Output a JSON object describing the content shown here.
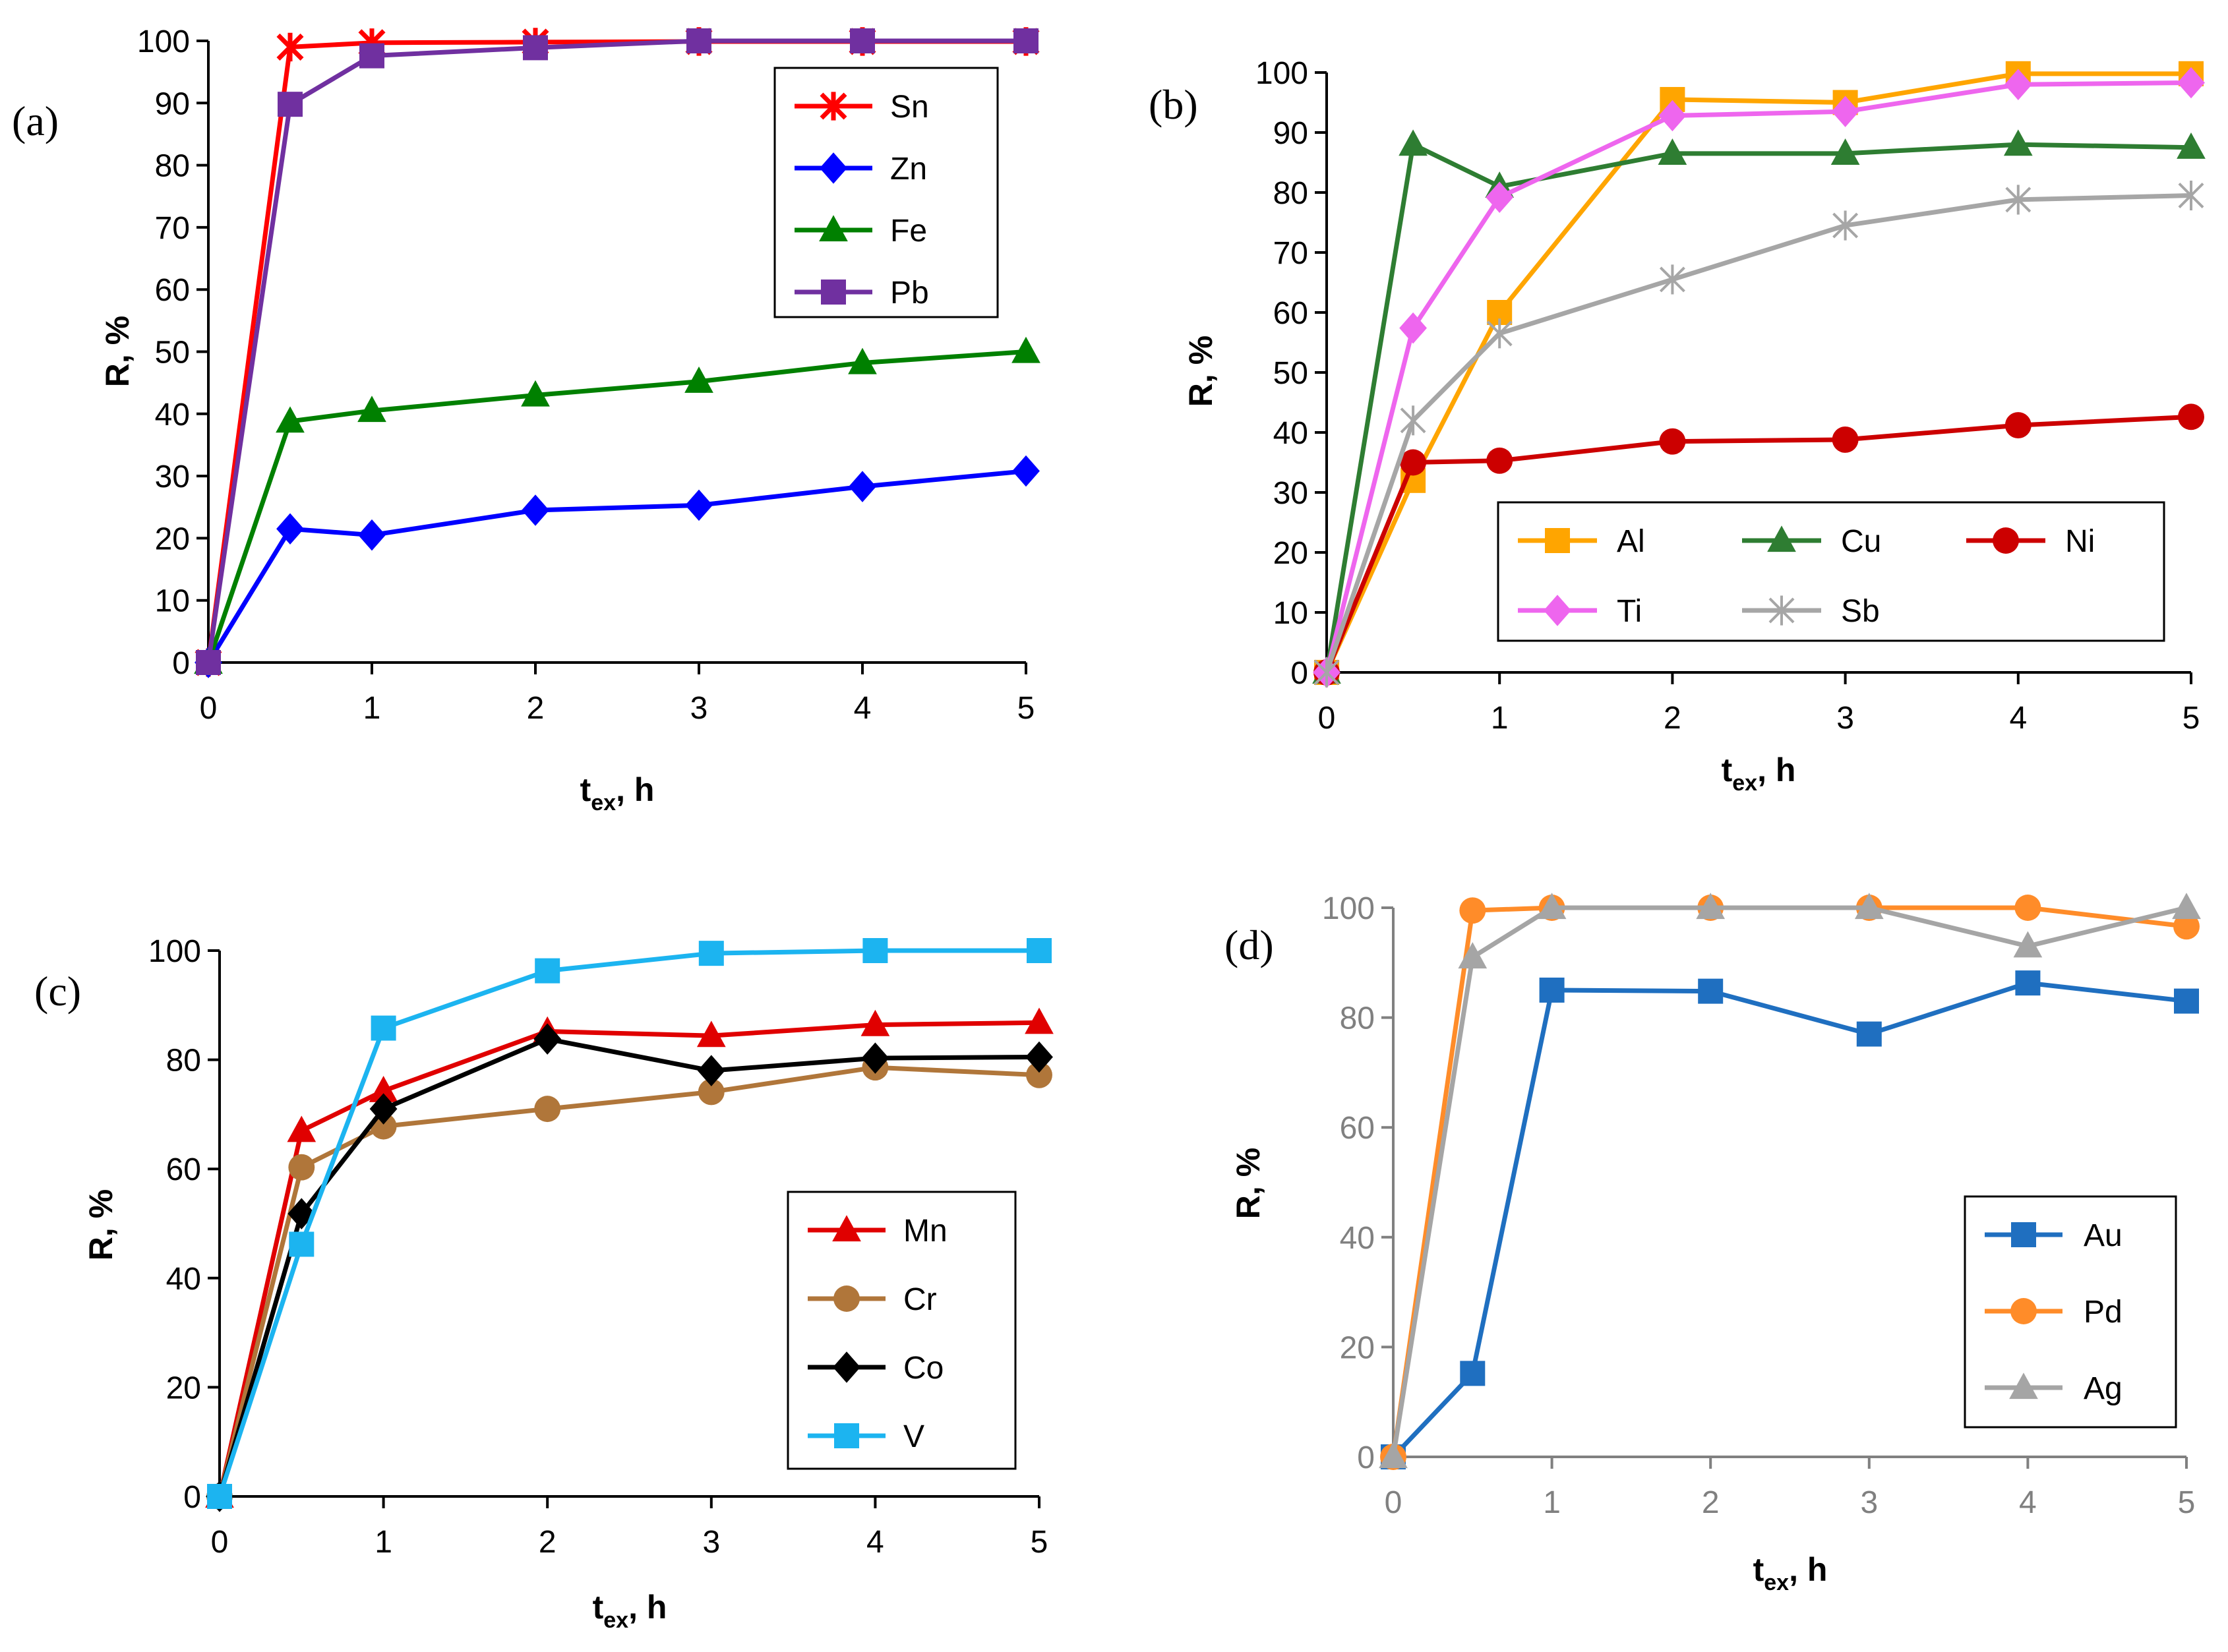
{
  "chart_data": [
    {
      "panel": "(a)",
      "type": "line",
      "title": "",
      "xlabel": "t",
      "xlabel_sub": "ex",
      "xlabel_suffix": ", h",
      "ylabel": "R, %",
      "xlim": [
        0,
        5
      ],
      "ylim": [
        0,
        100
      ],
      "xticks": [
        0,
        1,
        2,
        3,
        4,
        5
      ],
      "yticks": [
        0,
        10,
        20,
        30,
        40,
        50,
        60,
        70,
        80,
        90,
        100
      ],
      "axis_color": "#000000",
      "legend_position": "top-right",
      "x": [
        0,
        0.5,
        1,
        2,
        3,
        4,
        5
      ],
      "series": [
        {
          "name": "Sn",
          "color": "#ff0000",
          "marker": "star",
          "values": [
            0,
            99,
            99.7,
            99.8,
            99.9,
            99.9,
            99.9
          ]
        },
        {
          "name": "Zn",
          "color": "#0000ff",
          "marker": "diamond",
          "values": [
            0,
            21.5,
            20.5,
            24.5,
            25.3,
            28.3,
            30.8
          ]
        },
        {
          "name": "Fe",
          "color": "#008000",
          "marker": "triangle",
          "values": [
            0,
            38.8,
            40.5,
            43,
            45.2,
            48.2,
            50
          ]
        },
        {
          "name": "Pb",
          "color": "#7030a0",
          "marker": "square",
          "values": [
            0,
            89.8,
            97.6,
            98.9,
            100,
            100,
            100
          ]
        }
      ]
    },
    {
      "panel": "(b)",
      "type": "line",
      "title": "",
      "xlabel": "t",
      "xlabel_sub": "ex",
      "xlabel_suffix": ", h",
      "ylabel": "R, %",
      "xlim": [
        0,
        5
      ],
      "ylim": [
        0,
        100
      ],
      "xticks": [
        0,
        1,
        2,
        3,
        4,
        5
      ],
      "yticks": [
        0,
        10,
        20,
        30,
        40,
        50,
        60,
        70,
        80,
        90,
        100
      ],
      "axis_color": "#000000",
      "legend_position": "bottom-right",
      "x": [
        0,
        0.5,
        1,
        2,
        3,
        4,
        5
      ],
      "series": [
        {
          "name": "Al",
          "color": "#ffa500",
          "marker": "square",
          "values": [
            0,
            32,
            60,
            95.5,
            95,
            99.8,
            99.8
          ]
        },
        {
          "name": "Cu",
          "color": "#2e7d32",
          "marker": "triangle",
          "values": [
            0,
            88,
            81,
            86.5,
            86.5,
            88,
            87.5
          ]
        },
        {
          "name": "Ni",
          "color": "#cc0000",
          "marker": "circle",
          "values": [
            0,
            35,
            35.3,
            38.5,
            38.8,
            41.2,
            42.6
          ]
        },
        {
          "name": "Ti",
          "color": "#ee66ee",
          "marker": "diamond",
          "values": [
            0,
            57.4,
            79.2,
            92.8,
            93.5,
            98,
            98.3
          ]
        },
        {
          "name": "Sb",
          "color": "#a6a6a6",
          "marker": "asterisk",
          "values": [
            0,
            42,
            56.5,
            65.5,
            74.5,
            78.8,
            79.5
          ]
        }
      ]
    },
    {
      "panel": "(c)",
      "type": "line",
      "title": "",
      "xlabel": "t",
      "xlabel_sub": "ex",
      "xlabel_suffix": ", h",
      "ylabel": "R, %",
      "xlim": [
        0,
        5
      ],
      "ylim": [
        0,
        100
      ],
      "xticks": [
        0,
        1,
        2,
        3,
        4,
        5
      ],
      "yticks": [
        0,
        20,
        40,
        60,
        80,
        100
      ],
      "axis_color": "#000000",
      "legend_position": "bottom-right",
      "x": [
        0,
        0.5,
        1,
        2,
        3,
        4,
        5
      ],
      "series": [
        {
          "name": "Mn",
          "color": "#e00000",
          "marker": "triangle",
          "values": [
            0,
            67,
            74.3,
            85.2,
            84.4,
            86.4,
            86.8
          ]
        },
        {
          "name": "Cr",
          "color": "#b0763a",
          "marker": "circle",
          "values": [
            0,
            60.3,
            67.8,
            71,
            74.1,
            78.6,
            77.2
          ]
        },
        {
          "name": "Co",
          "color": "#000000",
          "marker": "diamond",
          "values": [
            0,
            51.8,
            71,
            83.8,
            78,
            80.3,
            80.5
          ]
        },
        {
          "name": "V",
          "color": "#1cb4f0",
          "marker": "square",
          "values": [
            0,
            46.2,
            85.8,
            96.3,
            99.5,
            100,
            100
          ]
        }
      ]
    },
    {
      "panel": "(d)",
      "type": "line",
      "title": "",
      "xlabel": "t",
      "xlabel_sub": "ex",
      "xlabel_suffix": ", h",
      "ylabel": "R, %",
      "xlim": [
        0,
        5
      ],
      "ylim": [
        0,
        100
      ],
      "xticks": [
        0,
        1,
        2,
        3,
        4,
        5
      ],
      "yticks": [
        0,
        20,
        40,
        60,
        80,
        100
      ],
      "axis_color": "#808080",
      "legend_position": "bottom-right",
      "x": [
        0,
        0.5,
        1,
        2,
        3,
        4,
        5
      ],
      "series": [
        {
          "name": "Au",
          "color": "#1f6fc0",
          "marker": "square",
          "values": [
            0,
            15.2,
            85,
            84.8,
            77,
            86.3,
            83
          ]
        },
        {
          "name": "Pd",
          "color": "#ff8c29",
          "marker": "circle",
          "values": [
            0,
            99.5,
            100,
            100,
            100,
            100,
            96.6
          ]
        },
        {
          "name": "Ag",
          "color": "#a5a5a5",
          "marker": "triangle",
          "values": [
            0,
            91,
            100,
            100,
            100,
            93,
            100
          ]
        }
      ]
    }
  ]
}
